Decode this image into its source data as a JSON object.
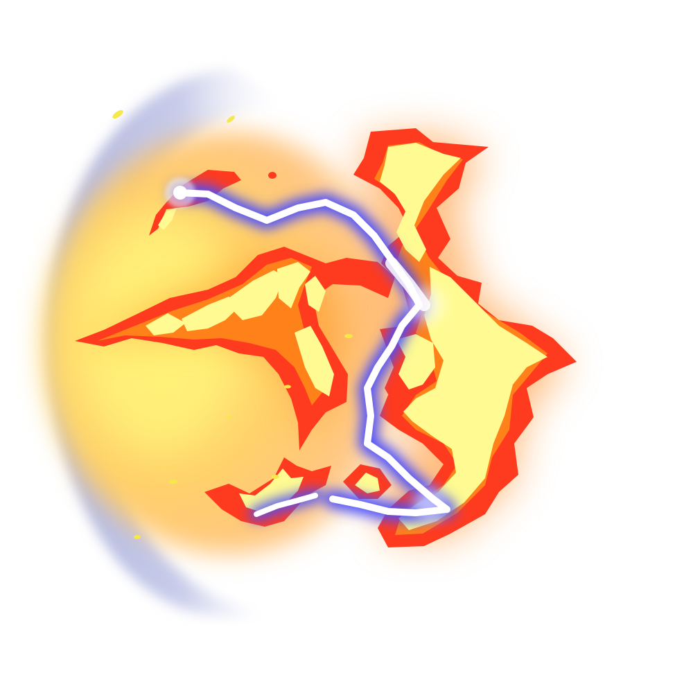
{
  "sprite": {
    "icon": "fire-lightning-burst-icon",
    "palette": {
      "background": "#ffffff",
      "shock_halo": "#aeb3dc",
      "core_glow": "#fff37a",
      "core_mid": "#ffb35a",
      "flame_outer": "#ff3b1f",
      "flame_mid": "#ff8a1a",
      "flame_inner": "#fffb92",
      "lightning_glow": "#4a4dff",
      "lightning_core": "#ffffff",
      "spark": "#f4e84a"
    }
  }
}
